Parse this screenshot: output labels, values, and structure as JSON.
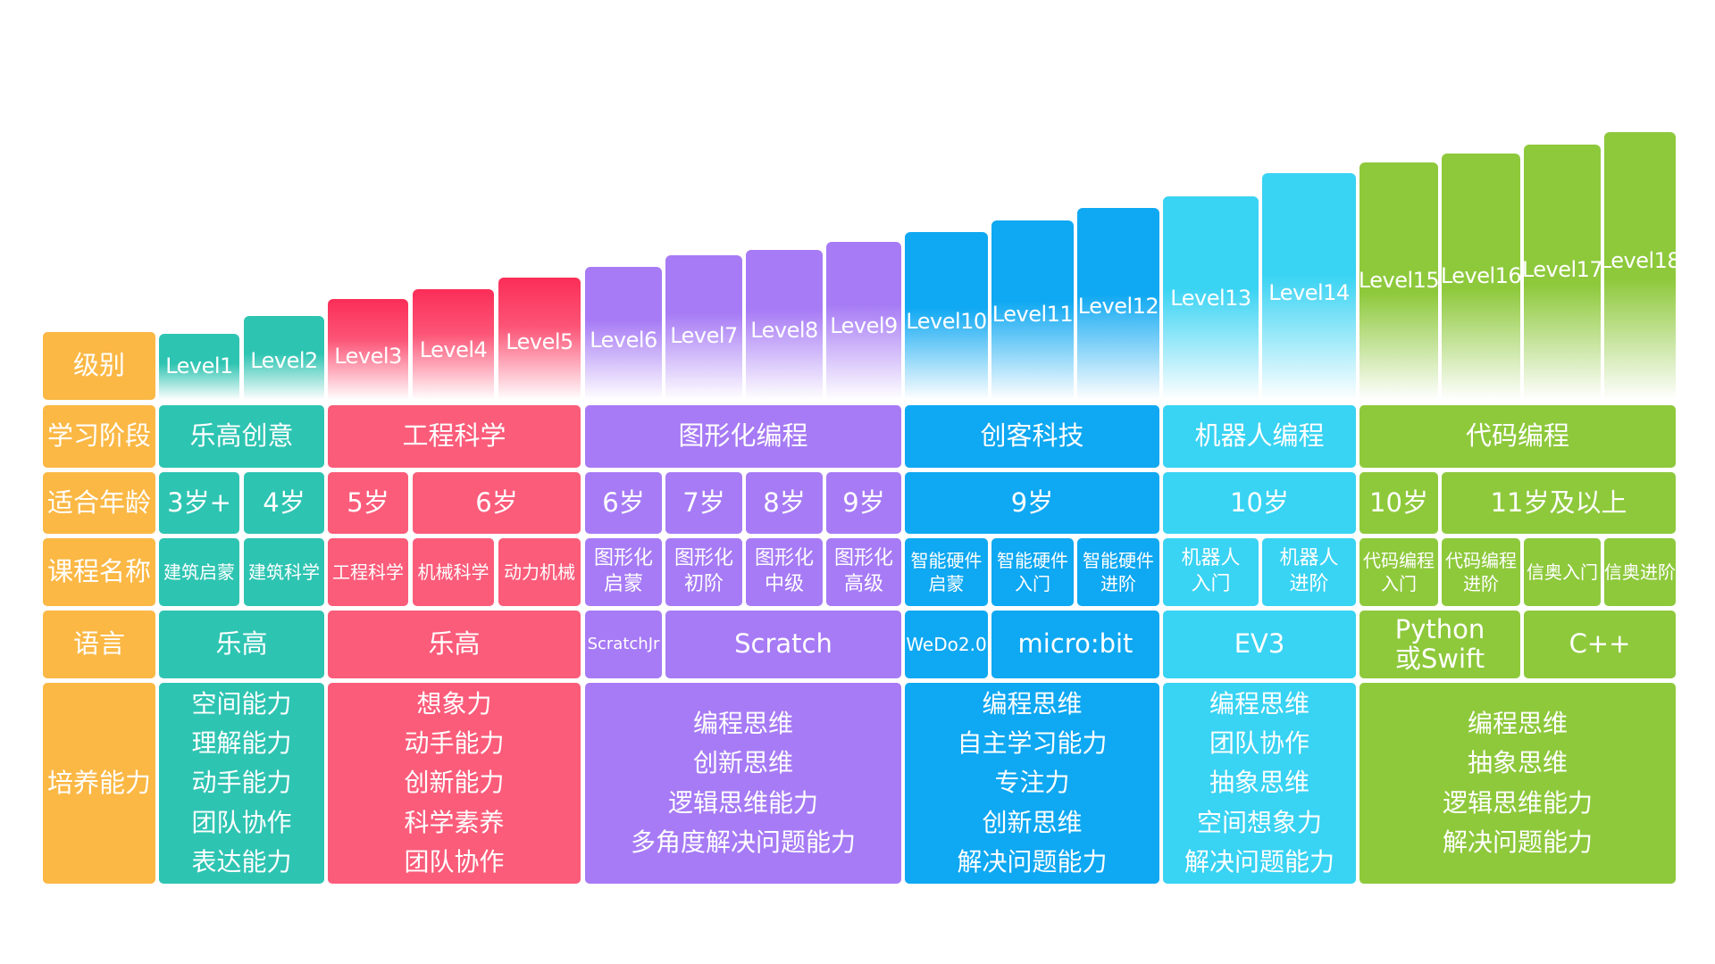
{
  "row_labels": {
    "level": "级别",
    "stage": "学习阶段",
    "age": "适合年龄",
    "course": "课程名称",
    "language": "语言",
    "ability": "培养能力"
  },
  "levels": [
    "Level1",
    "Level2",
    "Level3",
    "Level4",
    "Level5",
    "Level6",
    "Level7",
    "Level8",
    "Level9",
    "Level10",
    "Level11",
    "Level12",
    "Level13",
    "Level14",
    "Level15",
    "Level16",
    "Level17",
    "Level18"
  ],
  "stages": [
    "乐高创意",
    "工程科学",
    "图形化编程",
    "创客科技",
    "机器人编程",
    "代码编程"
  ],
  "ages": [
    "3岁+",
    "4岁",
    "5岁",
    "6岁",
    "6岁",
    "7岁",
    "8岁",
    "9岁",
    "9岁",
    "10岁",
    "10岁",
    "11岁及以上"
  ],
  "courses": [
    [
      "建筑启蒙"
    ],
    [
      "建筑科学"
    ],
    [
      "工程科学"
    ],
    [
      "机械科学"
    ],
    [
      "动力机械"
    ],
    [
      "图形化",
      "启蒙"
    ],
    [
      "图形化",
      "初阶"
    ],
    [
      "图形化",
      "中级"
    ],
    [
      "图形化",
      "高级"
    ],
    [
      "智能硬件",
      "启蒙"
    ],
    [
      "智能硬件",
      "入门"
    ],
    [
      "智能硬件",
      "进阶"
    ],
    [
      "机器人",
      "入门"
    ],
    [
      "机器人",
      "进阶"
    ],
    [
      "代码编程",
      "入门"
    ],
    [
      "代码编程",
      "进阶"
    ],
    [
      "信奥入门"
    ],
    [
      "信奥进阶"
    ]
  ],
  "languages": [
    [
      "乐高"
    ],
    [
      "乐高"
    ],
    [
      "ScratchJr"
    ],
    [
      "Scratch"
    ],
    [
      "WeDo2.0"
    ],
    [
      "micro:bit"
    ],
    [
      "EV3"
    ],
    [
      "Python",
      "或Swift"
    ],
    [
      "C++"
    ]
  ],
  "abilities": [
    [
      "空间能力",
      "理解能力",
      "动手能力",
      "团队协作",
      "表达能力"
    ],
    [
      "想象力",
      "动手能力",
      "创新能力",
      "科学素养",
      "团队协作"
    ],
    [
      "编程思维",
      "创新思维",
      "逻辑思维能力",
      "多角度解决问题能力"
    ],
    [
      "编程思维",
      "自主学习能力",
      "专注力",
      "创新思维",
      "解决问题能力"
    ],
    [
      "编程思维",
      "团队协作",
      "抽象思维",
      "空间想象力",
      "解决问题能力"
    ],
    [
      "编程思维",
      "抽象思维",
      "逻辑思维能力",
      "解决问题能力"
    ]
  ],
  "colors": {
    "header": "#FBB845",
    "lego": "#2EC4B2",
    "engineering": "#FB5C7A",
    "graphical": "#A77BF5",
    "maker": "#0FA8F2",
    "robotics": "#39D3F3",
    "code": "#8EC93C"
  }
}
